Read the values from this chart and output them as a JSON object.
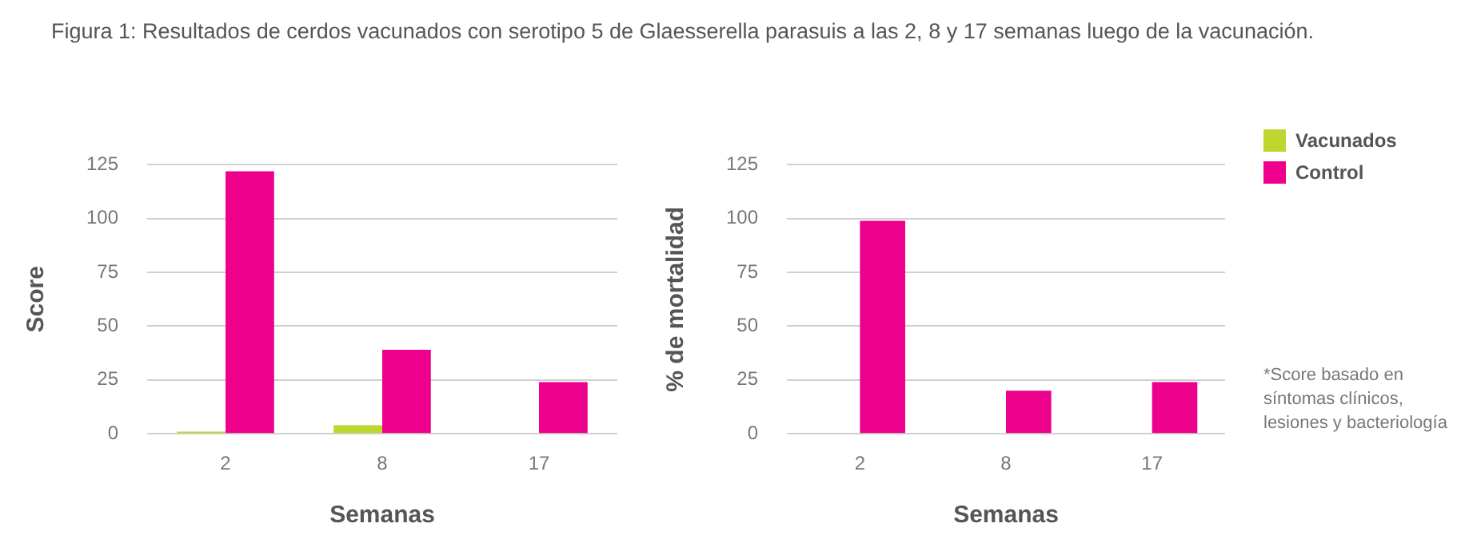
{
  "chart_data": [
    {
      "type": "bar",
      "title": "Figura 1: Resultados de cerdos vacunados con serotipo 5 de Glaesserella parasuis a las 2, 8 y 17 semanas luego de la vacunación.",
      "xlabel": "Semanas",
      "ylabel": "Score",
      "categories": [
        "2",
        "8",
        "17"
      ],
      "series": [
        {
          "color": "#bfd630",
          "values": [
            1,
            4,
            0
          ]
        },
        {
          "color": "#ec008c",
          "values": [
            122,
            39,
            24
          ]
        }
      ],
      "ylim": [
        0,
        125
      ],
      "yticks": [
        0,
        25,
        50,
        75,
        100,
        125
      ],
      "grid": "y",
      "legend": false
    },
    {
      "type": "bar",
      "xlabel": "Semanas",
      "ylabel": "% de mortalidad",
      "categories": [
        "2",
        "8",
        "17"
      ],
      "series": [
        {
          "name": "Vacunados",
          "color": "#bfd630",
          "values": [
            0,
            0,
            0
          ]
        },
        {
          "name": "Control",
          "color": "#ec008c",
          "values": [
            99,
            20,
            24
          ]
        }
      ],
      "ylim": [
        0,
        125
      ],
      "yticks": [
        0,
        25,
        50,
        75,
        100,
        125
      ],
      "grid": "y",
      "legend": "right",
      "annotations": [
        "*Score basado en síntomas clínicos, lesiones y bacteriología"
      ]
    }
  ]
}
